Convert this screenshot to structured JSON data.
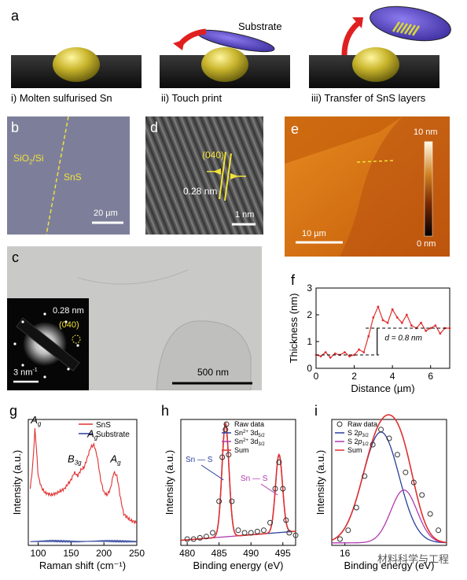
{
  "panel_labels": {
    "a": "a",
    "b": "b",
    "c": "c",
    "d": "d",
    "e": "e",
    "f": "f",
    "g": "g",
    "h": "h",
    "i": "i"
  },
  "panel_a": {
    "step1": "i) Molten sulfurised Sn",
    "step2": "ii) Touch print",
    "step3": "iii) Transfer of SnS layers",
    "substrate": "Substrate"
  },
  "panel_b": {
    "region1_base": "SiO",
    "region1_sub": "2",
    "region1_tail": "/Si",
    "region2": "SnS",
    "scale": "20 µm",
    "bg_color": "#7d7f9a"
  },
  "panel_c": {
    "inset_d": "0.28 nm",
    "inset_plane": "(040)",
    "inset_scale_base": "3 nm",
    "inset_scale_sup": "-1",
    "scale": "500 nm"
  },
  "panel_d": {
    "plane": "(040)",
    "spacing": "0.28 nm",
    "scale": "1 nm"
  },
  "panel_e": {
    "colorbar_max": "10 nm",
    "colorbar_min": "0 nm",
    "scale": "10 µm"
  },
  "chart_data": [
    {
      "panel": "f",
      "type": "line",
      "xlabel": "Distance (µm)",
      "ylabel": "Thickness (nm)",
      "xlim": [
        0,
        7
      ],
      "ylim": [
        0,
        3
      ],
      "xticks": [
        0,
        2,
        4,
        6
      ],
      "yticks": [
        0,
        1,
        2,
        3
      ],
      "annotation": "d = 0.8 nm",
      "x": [
        0,
        0.25,
        0.5,
        0.75,
        1,
        1.25,
        1.5,
        1.75,
        2,
        2.25,
        2.5,
        2.75,
        3,
        3.25,
        3.5,
        3.75,
        4,
        4.25,
        4.5,
        4.75,
        5,
        5.25,
        5.5,
        5.75,
        6,
        6.25,
        6.5,
        6.75,
        7
      ],
      "y": [
        0.5,
        0.45,
        0.6,
        0.4,
        0.55,
        0.5,
        0.6,
        0.45,
        0.5,
        0.7,
        0.6,
        1.2,
        1.9,
        2.3,
        1.8,
        1.7,
        2.2,
        1.9,
        1.7,
        2.0,
        1.6,
        1.5,
        1.7,
        1.4,
        1.5,
        1.6,
        1.3,
        1.5,
        1.5
      ],
      "levels": [
        0.5,
        1.5
      ]
    },
    {
      "panel": "g",
      "type": "line",
      "xlabel": "Raman shift (cm⁻¹)",
      "ylabel": "Intensity (a.u.)",
      "xlim": [
        85,
        250
      ],
      "xticks": [
        100,
        150,
        200,
        250
      ],
      "series": [
        {
          "name": "SnS",
          "color": "#e03030",
          "x": [
            88,
            92,
            95,
            97,
            100,
            105,
            110,
            120,
            130,
            140,
            150,
            155,
            160,
            165,
            170,
            175,
            180,
            185,
            190,
            195,
            200,
            205,
            210,
            215,
            220,
            225,
            230,
            240,
            250
          ],
          "y": [
            0.45,
            0.65,
            0.92,
            0.8,
            0.55,
            0.46,
            0.42,
            0.4,
            0.42,
            0.45,
            0.52,
            0.58,
            0.55,
            0.6,
            0.62,
            0.7,
            0.78,
            0.8,
            0.7,
            0.52,
            0.42,
            0.4,
            0.45,
            0.58,
            0.55,
            0.38,
            0.25,
            0.2,
            0.18
          ]
        },
        {
          "name": "Substrate",
          "color": "#2b3f9a",
          "x": [
            88,
            120,
            160,
            200,
            250
          ],
          "y": [
            0.03,
            0.035,
            0.03,
            0.035,
            0.03
          ]
        }
      ],
      "peak_labels": [
        {
          "base": "A",
          "sub": "g"
        },
        {
          "base": "B",
          "sub": "3g"
        },
        {
          "base": "A",
          "sub": "g"
        },
        {
          "base": "A",
          "sub": "g"
        }
      ]
    },
    {
      "panel": "h",
      "type": "line",
      "xlabel": "Binding energy (eV)",
      "ylabel": "Intensity (a.u.)",
      "xlim": [
        479,
        497
      ],
      "xticks": [
        480,
        485,
        490,
        495
      ],
      "legend": {
        "raw": "Raw data",
        "c1_pre": "Sn",
        "c1_sup": "2+",
        "c1_mid": " 3d",
        "c1_sub": "5/2",
        "c2_pre": "Sn",
        "c2_sup": "2+",
        "c2_mid": " 3d",
        "c2_sub": "3/2",
        "sum": "Sum"
      },
      "bond_label_1": "Sn — S",
      "bond_label_2": "Sn — S",
      "peaks_eV": [
        486.0,
        494.4
      ],
      "peak_heights": [
        0.9,
        0.62
      ],
      "raw_x": [
        480,
        481,
        482,
        483,
        484,
        485,
        485.5,
        486,
        486.5,
        487,
        488,
        489,
        490,
        491,
        492,
        493,
        493.8,
        494.4,
        495,
        495.5,
        496,
        497
      ],
      "raw_y": [
        0.05,
        0.05,
        0.06,
        0.07,
        0.1,
        0.35,
        0.7,
        0.92,
        0.72,
        0.35,
        0.12,
        0.1,
        0.1,
        0.11,
        0.12,
        0.18,
        0.45,
        0.66,
        0.45,
        0.2,
        0.1,
        0.08
      ]
    },
    {
      "panel": "i",
      "type": "line",
      "xlabel": "Binding energy (eV)",
      "ylabel": "Intensity (a.u.)",
      "xtick_label": "16",
      "legend": {
        "raw": "Raw data",
        "c1_pre": "S 2",
        "c1_italic": "p",
        "c1_sub": "3/2",
        "c2_pre": "S 2",
        "c2_italic": "p",
        "c2_sub": "1/2",
        "sum": "Sum"
      },
      "raw_x": [
        159,
        159.5,
        160,
        160.5,
        161,
        161.5,
        162,
        162.5,
        163,
        163.5,
        164,
        164.5,
        165
      ],
      "raw_y": [
        0.05,
        0.12,
        0.3,
        0.55,
        0.8,
        0.92,
        0.85,
        0.72,
        0.58,
        0.5,
        0.4,
        0.25,
        0.12
      ]
    }
  ],
  "watermark": "材料科学与工程"
}
